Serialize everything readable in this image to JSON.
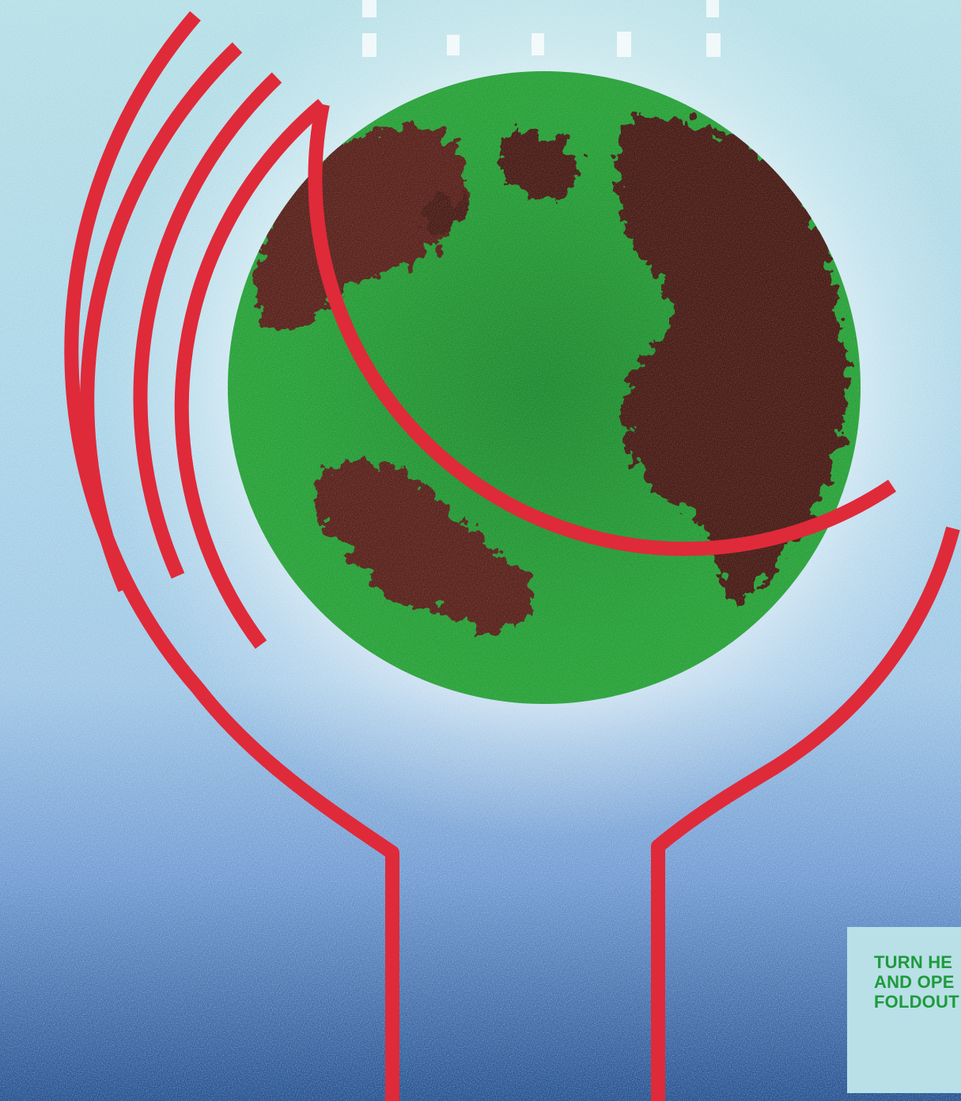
{
  "colors": {
    "sky_top": "#b4dfe6",
    "sky_mid": "#9fc7e6",
    "sky_low": "#6f99d2",
    "sky_bottom": "#23508f",
    "glow": "#ffffff",
    "globe_ocean": "#2aa33a",
    "globe_ocean_deep": "#1f8a30",
    "globe_land": "#4a1c16",
    "globe_land_edge": "#6b2e1f",
    "arc_red": "#df2a3a",
    "panel_bg": "#b8e0e6",
    "panel_text": "#1f9a3e"
  },
  "icons": {
    "globe": "earth-globe-icon",
    "signal_arcs": "radio-waves-icon"
  },
  "foldout_note": {
    "lines": [
      "TURN HE",
      "AND OPE",
      "FOLDOUT"
    ]
  }
}
